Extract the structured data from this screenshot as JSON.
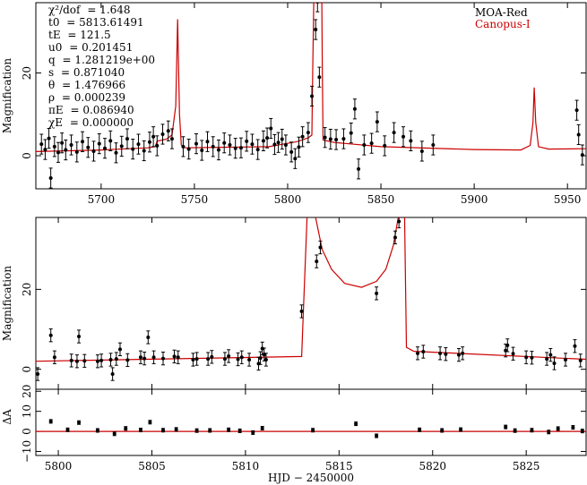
{
  "legend": {
    "series_1": "MOA-Red",
    "series_2": "Canopus-I",
    "series_1_color": "#000000",
    "series_2_color": "#cc0000"
  },
  "fit_parameters": [
    {
      "name": "χ²/dof",
      "value": "= 1.648"
    },
    {
      "name": "t0",
      "value": "= 5813.61491"
    },
    {
      "name": "tE",
      "value": "= 121.5"
    },
    {
      "name": "u0",
      "value": "= 0.201451"
    },
    {
      "name": "q",
      "value": "= 1.281219e+00"
    },
    {
      "name": "s",
      "value": "= 0.871040"
    },
    {
      "name": "θ",
      "value": "= 1.476966"
    },
    {
      "name": "ρ",
      "value": "= 0.000239"
    },
    {
      "name": "πE",
      "value": "= 0.086940"
    },
    {
      "name": "χE",
      "value": "= 0.000000"
    }
  ],
  "chart_data": [
    {
      "type": "scatter",
      "panel": "top",
      "xlim": [
        5665,
        5960
      ],
      "ylim": [
        -8,
        37
      ],
      "ylabel": "Magnification",
      "xticks": [
        "5700",
        "5750",
        "5800",
        "5850",
        "5900",
        "5950"
      ],
      "yticks": [
        "0",
        "20"
      ],
      "series": [
        {
          "name": "MOA-Red",
          "points": [
            [
              5668,
              2.8
            ],
            [
              5670,
              1.5
            ],
            [
              5672,
              4.2
            ],
            [
              5673,
              -5.4
            ],
            [
              5675,
              2.2
            ],
            [
              5677,
              0.8
            ],
            [
              5679,
              3.1
            ],
            [
              5681,
              1.4
            ],
            [
              5684,
              2.6
            ],
            [
              5687,
              0.9
            ],
            [
              5690,
              3.4
            ],
            [
              5693,
              2.0
            ],
            [
              5696,
              1.1
            ],
            [
              5699,
              2.9
            ],
            [
              5702,
              1.8
            ],
            [
              5705,
              3.6
            ],
            [
              5708,
              0.7
            ],
            [
              5711,
              2.3
            ],
            [
              5714,
              4.1
            ],
            [
              5717,
              1.6
            ],
            [
              5720,
              2.8
            ],
            [
              5723,
              1.2
            ],
            [
              5726,
              3.3
            ],
            [
              5728,
              4.6
            ],
            [
              5730,
              2.4
            ],
            [
              5733,
              5.2
            ],
            [
              5736,
              6.0
            ],
            [
              5738,
              4.1
            ],
            [
              5744,
              2.2
            ],
            [
              5747,
              1.6
            ],
            [
              5751,
              2.9
            ],
            [
              5754,
              1.3
            ],
            [
              5757,
              3.4
            ],
            [
              5760,
              2.2
            ],
            [
              5763,
              1.4
            ],
            [
              5766,
              3.1
            ],
            [
              5769,
              2.6
            ],
            [
              5772,
              1.8
            ],
            [
              5775,
              1.9
            ],
            [
              5778,
              3.5
            ],
            [
              5781,
              2.8
            ],
            [
              5784,
              1.5
            ],
            [
              5787,
              3.6
            ],
            [
              5789,
              4.3
            ],
            [
              5791,
              6.6
            ],
            [
              5793,
              2.7
            ],
            [
              5795,
              3.2
            ],
            [
              5797,
              4.0
            ],
            [
              5799,
              2.6
            ],
            [
              5802,
              0.9
            ],
            [
              5804,
              -0.7
            ],
            [
              5806,
              2.1
            ],
            [
              5808,
              4.6
            ],
            [
              5811,
              5.6
            ],
            [
              5813,
              14.4
            ],
            [
              5815,
              30.5
            ],
            [
              5816,
              37.2
            ],
            [
              5817,
              19.0
            ],
            [
              5820,
              4.4
            ],
            [
              5823,
              4.0
            ],
            [
              5826,
              3.9
            ],
            [
              5830,
              4.1
            ],
            [
              5834,
              5.5
            ],
            [
              5836,
              11.3
            ],
            [
              5838,
              -3.2
            ],
            [
              5841,
              2.6
            ],
            [
              5845,
              3.0
            ],
            [
              5848,
              8.2
            ],
            [
              5852,
              2.4
            ],
            [
              5857,
              5.6
            ],
            [
              5862,
              4.6
            ],
            [
              5866,
              3.6
            ],
            [
              5872,
              1.1
            ],
            [
              5878,
              2.6
            ],
            [
              5955,
              11.0
            ],
            [
              5956,
              5.1
            ],
            [
              5958,
              0.2
            ]
          ]
        },
        {
          "name": "Canopus-I",
          "model_knots": [
            [
              5665,
              1.0
            ],
            [
              5700,
              1.4
            ],
            [
              5725,
              1.9
            ],
            [
              5729,
              2.2
            ],
            [
              5730,
              3.5
            ],
            [
              5735,
              4.0
            ],
            [
              5738,
              5.0
            ],
            [
              5740,
              12.0
            ],
            [
              5741,
              33.0
            ],
            [
              5742,
              10.0
            ],
            [
              5743,
              2.6
            ],
            [
              5745,
              1.9
            ],
            [
              5790,
              2.2
            ],
            [
              5805,
              3.4
            ],
            [
              5811,
              4.3
            ],
            [
              5813.0,
              5.0
            ],
            [
              5813.4,
              20.0
            ],
            [
              5814,
              37.0
            ],
            [
              5818.3,
              37.0
            ],
            [
              5818.6,
              20.0
            ],
            [
              5819,
              3.8
            ],
            [
              5825,
              3.2
            ],
            [
              5850,
              2.2
            ],
            [
              5900,
              1.5
            ],
            [
              5925,
              1.4
            ],
            [
              5930,
              2.5
            ],
            [
              5931.5,
              8.0
            ],
            [
              5932.2,
              16.5
            ],
            [
              5933,
              8.0
            ],
            [
              5934.5,
              2.2
            ],
            [
              5940,
              1.6
            ],
            [
              5960,
              1.7
            ]
          ]
        }
      ]
    },
    {
      "type": "scatter",
      "panel": "middle",
      "xlim": [
        5798.8,
        5828.2
      ],
      "ylim": [
        -5,
        38
      ],
      "ylabel": "Magnification",
      "yticks": [
        "0",
        "20"
      ],
      "series": [
        {
          "name": "MOA-Red",
          "points": [
            [
              5798.9,
              -1.2
            ],
            [
              5799.6,
              8.5
            ],
            [
              5799.8,
              3.0
            ],
            [
              5800.7,
              2.2
            ],
            [
              5801.0,
              2.0
            ],
            [
              5801.1,
              8.2
            ],
            [
              5801.4,
              2.1
            ],
            [
              5802.1,
              2.0
            ],
            [
              5802.3,
              2.2
            ],
            [
              5802.8,
              2.4
            ],
            [
              5802.9,
              -1.2
            ],
            [
              5803.1,
              2.6
            ],
            [
              5803.3,
              5.0
            ],
            [
              5803.7,
              2.3
            ],
            [
              5804.4,
              3.0
            ],
            [
              5804.6,
              2.7
            ],
            [
              5804.8,
              8.0
            ],
            [
              5805.1,
              3.0
            ],
            [
              5805.6,
              2.7
            ],
            [
              5806.2,
              3.2
            ],
            [
              5806.4,
              3.0
            ],
            [
              5807.2,
              2.4
            ],
            [
              5807.4,
              2.6
            ],
            [
              5808.0,
              2.6
            ],
            [
              5808.2,
              3.1
            ],
            [
              5808.9,
              2.6
            ],
            [
              5809.1,
              3.3
            ],
            [
              5809.6,
              2.5
            ],
            [
              5809.8,
              3.0
            ],
            [
              5810.2,
              2.4
            ],
            [
              5810.7,
              1.4
            ],
            [
              5810.8,
              2.8
            ],
            [
              5810.9,
              5.2
            ],
            [
              5811.0,
              3.7
            ],
            [
              5811.1,
              2.4
            ],
            [
              5813.0,
              14.5
            ],
            [
              5813.8,
              27.0
            ],
            [
              5814.0,
              30.5
            ],
            [
              5817.0,
              19.0
            ],
            [
              5818.0,
              33.0
            ],
            [
              5818.2,
              37.0
            ],
            [
              5819.2,
              4.0
            ],
            [
              5819.5,
              4.4
            ],
            [
              5820.4,
              4.0
            ],
            [
              5820.7,
              3.8
            ],
            [
              5821.4,
              3.6
            ],
            [
              5821.6,
              4.0
            ],
            [
              5823.9,
              4.7
            ],
            [
              5824.0,
              6.0
            ],
            [
              5824.3,
              3.9
            ],
            [
              5825.0,
              3.0
            ],
            [
              5825.3,
              2.9
            ],
            [
              5826.1,
              2.6
            ],
            [
              5826.3,
              3.6
            ],
            [
              5826.5,
              1.5
            ],
            [
              5827.1,
              2.4
            ],
            [
              5827.6,
              5.8
            ],
            [
              5827.9,
              2.2
            ]
          ]
        },
        {
          "name": "Canopus-I",
          "model_knots": [
            [
              5798.8,
              2.0
            ],
            [
              5813.0,
              3.2
            ],
            [
              5813.1,
              15.0
            ],
            [
              5813.3,
              39.0
            ],
            [
              5813.7,
              39.0
            ],
            [
              5814.1,
              30.0
            ],
            [
              5814.6,
              25.0
            ],
            [
              5815.3,
              21.5
            ],
            [
              5816.2,
              20.5
            ],
            [
              5817.0,
              22.0
            ],
            [
              5817.5,
              25.0
            ],
            [
              5817.9,
              31.0
            ],
            [
              5818.2,
              39.0
            ],
            [
              5818.5,
              39.0
            ],
            [
              5818.6,
              5.5
            ],
            [
              5819.0,
              4.5
            ],
            [
              5828.2,
              2.5
            ]
          ]
        }
      ]
    },
    {
      "type": "scatter",
      "panel": "bottom-residual",
      "xlim": [
        5798.8,
        5828.2
      ],
      "ylim": [
        -12,
        21
      ],
      "ylabel": "ΔA",
      "xlabel": "HJD − 2450000",
      "xticks": [
        "5800",
        "5805",
        "5810",
        "5815",
        "5820",
        "5825"
      ],
      "yticks": [
        "−10",
        "0",
        "10",
        "20"
      ],
      "series": [
        {
          "name": "MOA-Red",
          "points": [
            [
              5799.6,
              5.0
            ],
            [
              5800.5,
              0.8
            ],
            [
              5801.1,
              4.4
            ],
            [
              5802.1,
              0.5
            ],
            [
              5803.0,
              -1.2
            ],
            [
              5803.6,
              1.5
            ],
            [
              5804.4,
              0.7
            ],
            [
              5804.9,
              4.6
            ],
            [
              5805.6,
              0.6
            ],
            [
              5806.3,
              1.0
            ],
            [
              5807.4,
              0.4
            ],
            [
              5808.1,
              0.5
            ],
            [
              5809.1,
              0.8
            ],
            [
              5809.7,
              0.3
            ],
            [
              5810.4,
              -0.6
            ],
            [
              5810.9,
              1.6
            ],
            [
              5813.6,
              0.6
            ],
            [
              5815.9,
              3.8
            ],
            [
              5817.0,
              -2.2
            ],
            [
              5819.3,
              0.8
            ],
            [
              5820.5,
              0.5
            ],
            [
              5821.5,
              0.9
            ],
            [
              5823.9,
              2.2
            ],
            [
              5824.4,
              0.4
            ],
            [
              5825.3,
              0.6
            ],
            [
              5826.2,
              -0.3
            ],
            [
              5826.7,
              1.4
            ],
            [
              5827.5,
              2.0
            ],
            [
              5828.0,
              0.2
            ]
          ]
        },
        {
          "name": "Canopus-I",
          "model_knots": [
            [
              5798.8,
              0
            ],
            [
              5828.2,
              0
            ]
          ]
        }
      ]
    }
  ]
}
